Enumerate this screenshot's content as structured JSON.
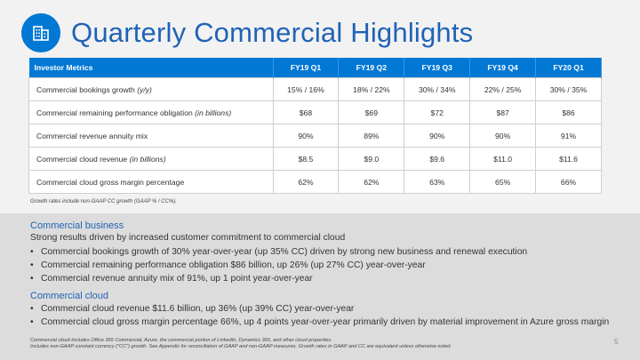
{
  "header": {
    "title": "Quarterly Commercial Highlights",
    "logo_icon": "building-icon",
    "accent": "#0078d4"
  },
  "table": {
    "columns": [
      "Investor Metrics",
      "FY19 Q1",
      "FY19 Q2",
      "FY19 Q3",
      "FY19 Q4",
      "FY20 Q1"
    ],
    "rows": [
      {
        "label": "Commercial bookings growth",
        "label_suffix": "(y/y)",
        "values": [
          "15% / 16%",
          "18% / 22%",
          "30% / 34%",
          "22% / 25%",
          "30% / 35%"
        ]
      },
      {
        "label": "Commercial remaining performance obligation",
        "label_suffix": "(in billions)",
        "values": [
          "$68",
          "$69",
          "$72",
          "$87",
          "$86"
        ]
      },
      {
        "label": "Commercial revenue annuity mix",
        "label_suffix": "",
        "values": [
          "90%",
          "89%",
          "90%",
          "90%",
          "91%"
        ]
      },
      {
        "label": "Commercial cloud revenue",
        "label_suffix": "(in billions)",
        "values": [
          "$8.5",
          "$9.0",
          "$9.6",
          "$11.0",
          "$11.6"
        ]
      },
      {
        "label": "Commercial cloud gross margin percentage",
        "label_suffix": "",
        "values": [
          "62%",
          "62%",
          "63%",
          "65%",
          "66%"
        ]
      }
    ],
    "note": "Growth rates include non-GAAP CC growth (GAAP % / CC%)."
  },
  "commercial_business": {
    "heading": "Commercial business",
    "summary": "Strong results driven by increased customer commitment to commercial cloud",
    "bullets": [
      "Commercial bookings growth of 30% year-over-year (up 35% CC) driven by strong new business and renewal execution",
      "Commercial remaining performance obligation $86 billion, up 26% (up 27% CC) year-over-year",
      "Commercial revenue annuity mix of 91%, up 1 point year-over-year"
    ]
  },
  "commercial_cloud": {
    "heading": "Commercial cloud",
    "bullets": [
      "Commercial cloud revenue $11.6 billion, up 36% (up 39% CC) year-over-year",
      "Commercial cloud gross margin percentage 66%, up 4 points year-over-year primarily driven by material improvement in Azure gross margin"
    ]
  },
  "footnotes": [
    "Commercial cloud includes Office 365 Commercial, Azure, the commercial portion of LinkedIn, Dynamics 365, and other cloud properties.",
    "Includes non-GAAP constant currency (\"CC\") growth. See Appendix for reconciliation of GAAP and non-GAAP measures. Growth rates in GAAP and CC are equivalent unless otherwise noted."
  ],
  "page_number": "5"
}
